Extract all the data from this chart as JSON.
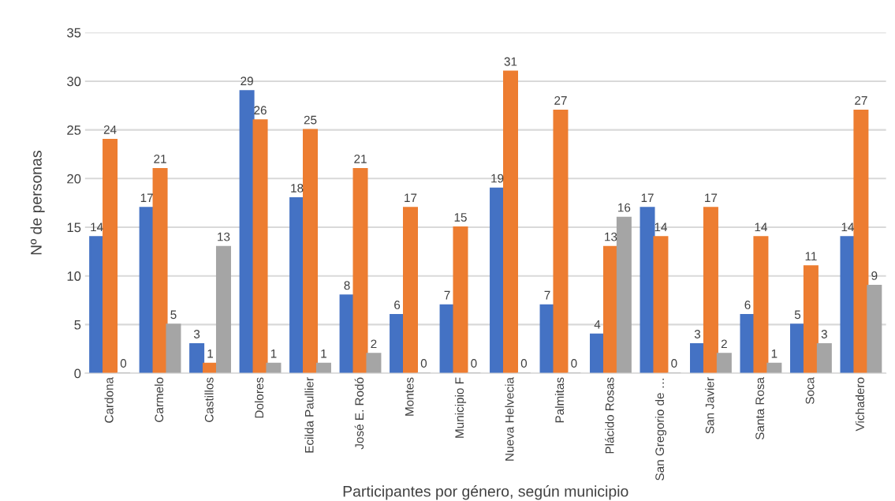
{
  "chart_data": {
    "type": "bar",
    "xlabel": "Participantes por género, según municipio",
    "ylabel": "Nº de personas",
    "categories": [
      "Cardona",
      "Carmelo",
      "Castillos",
      "Dolores",
      "Ecilda Paullier",
      "José E. Rodó",
      "Montes",
      "Municipio F",
      "Nueva Helvecia",
      "Palmitas",
      "Plácido Rosas",
      "San Gregorio de …",
      "San Javier",
      "Santa Rosa",
      "Soca",
      "Vichadero"
    ],
    "series": [
      {
        "color": "#4472c4",
        "values": [
          14,
          17,
          3,
          29,
          18,
          8,
          6,
          7,
          19,
          7,
          4,
          17,
          3,
          6,
          5,
          14
        ]
      },
      {
        "color": "#ed7d31",
        "values": [
          24,
          21,
          1,
          26,
          25,
          21,
          17,
          15,
          31,
          27,
          13,
          14,
          17,
          14,
          11,
          27
        ]
      },
      {
        "color": "#a5a5a5",
        "values": [
          0,
          5,
          13,
          1,
          1,
          2,
          0,
          0,
          0,
          0,
          16,
          0,
          2,
          1,
          3,
          9
        ]
      }
    ],
    "ylim": [
      0,
      35
    ],
    "yticks": [
      0,
      5,
      10,
      15,
      20,
      25,
      30,
      35
    ],
    "grid": "y",
    "data_labels": true,
    "legend": false
  }
}
